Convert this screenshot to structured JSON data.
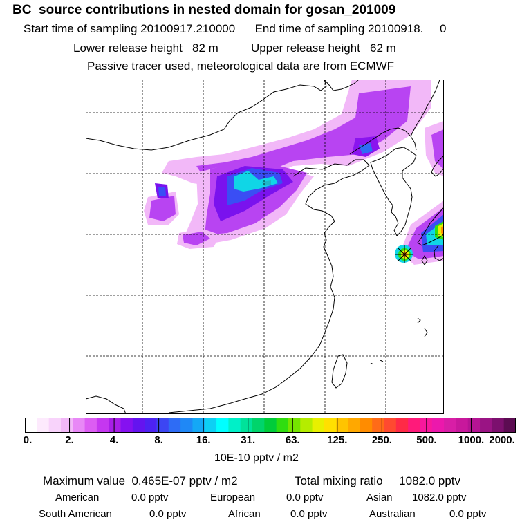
{
  "header": {
    "title": "BC  source contributions in nested domain for gosan_201009",
    "start_label": "Start time of sampling 20100917.210000",
    "end_label": "End time of sampling 20100918.",
    "end_value": "0",
    "lower_label": "Lower release height   82 m",
    "upper_label": "Upper release height   62 m",
    "tracer_note": "Passive tracer used, meteorological data are from ECMWF"
  },
  "colorbar": {
    "ticks": [
      "0.",
      "2.",
      "4.",
      "8.",
      "16.",
      "31.",
      "63.",
      "125.",
      "250.",
      "500.",
      "1000.",
      "2000."
    ],
    "colors": [
      "#ffffff",
      "#fdeafd",
      "#f8d3fb",
      "#f2b8f8",
      "#e888f6",
      "#dc5df3",
      "#c537f0",
      "#a91ee8",
      "#8511f0",
      "#6414ef",
      "#4d22f2",
      "#3c46f3",
      "#2e6cf5",
      "#1f88f6",
      "#14a8f6",
      "#0dd0f4",
      "#00ffff",
      "#00f0c8",
      "#00e29a",
      "#00d46b",
      "#00cc3a",
      "#30dd10",
      "#75e500",
      "#b5ec00",
      "#e8f000",
      "#ffe000",
      "#ffc400",
      "#ffa800",
      "#ff8c00",
      "#ff6b18",
      "#ff4a30",
      "#ff2a46",
      "#ff1a7a",
      "#f8189c",
      "#ec18ac",
      "#d81ea6",
      "#c8189c",
      "#b51494",
      "#9a1484",
      "#7c106e",
      "#5c0c52"
    ],
    "units": "10E-10 pptv / m2"
  },
  "summary": {
    "max_label": "Maximum value  0.465E-07 pptv / m2",
    "total_label": "Total mixing ratio     1082.0 pptv",
    "american_label": "American",
    "american_value": "0.0 pptv",
    "european_label": "European",
    "european_value": "0.0 pptv",
    "asian_label": "Asian",
    "asian_value": "1082.0 pptv",
    "south_american_label": "South American",
    "south_american_value": "0.0 pptv",
    "african_label": "African",
    "african_value": "0.0 pptv",
    "australian_label": "Australian",
    "australian_value": "0.0 pptv"
  },
  "map": {
    "receptor_marker": "star-marker",
    "plume_colors": {
      "low": "#e888f6",
      "mid": "#a52cf0",
      "blue": "#3a4ef4",
      "cyan": "#00f0f0",
      "teal": "#10c8c8",
      "green": "#20d040",
      "yellow": "#e8f000",
      "orange": "#ff9000"
    }
  }
}
